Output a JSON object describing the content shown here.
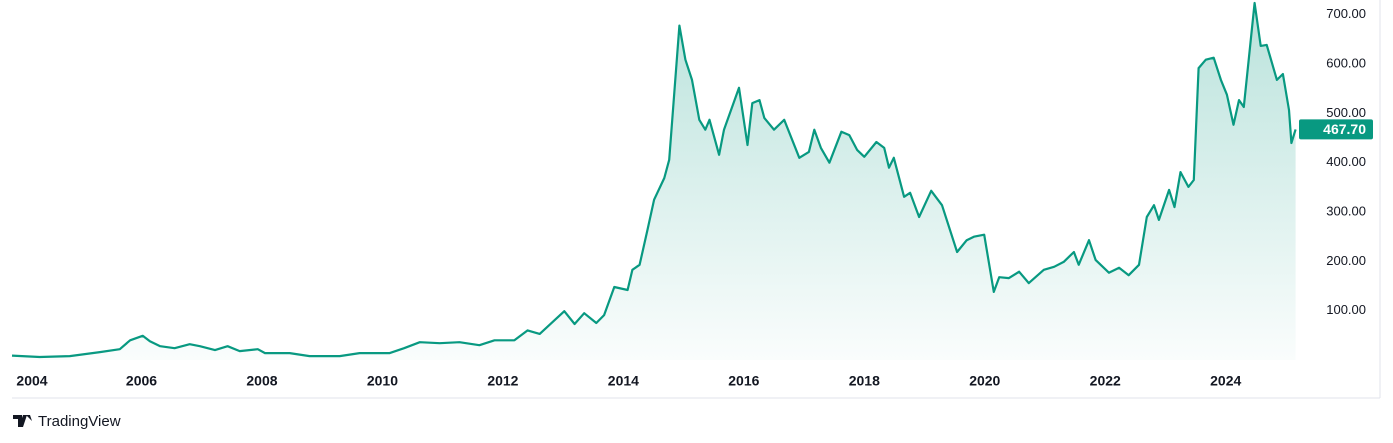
{
  "chart_data": {
    "type": "area",
    "brand": "TradingView",
    "color": "#089981",
    "x": [
      2003.85,
      2004.31,
      2004.81,
      2005.31,
      2005.64,
      2005.81,
      2006.02,
      2006.14,
      2006.31,
      2006.55,
      2006.8,
      2006.97,
      2007.22,
      2007.43,
      2007.63,
      2007.93,
      2008.05,
      2008.46,
      2008.79,
      2009.29,
      2009.62,
      2010.12,
      2010.36,
      2010.62,
      2010.95,
      2011.28,
      2011.61,
      2011.86,
      2012.19,
      2012.41,
      2012.61,
      2012.86,
      2013.02,
      2013.19,
      2013.35,
      2013.55,
      2013.68,
      2013.85,
      2014.07,
      2014.15,
      2014.27,
      2014.4,
      2014.51,
      2014.68,
      2014.76,
      2014.93,
      2015.03,
      2015.14,
      2015.26,
      2015.36,
      2015.43,
      2015.59,
      2015.67,
      2015.92,
      2016.06,
      2016.14,
      2016.26,
      2016.34,
      2016.5,
      2016.67,
      2016.92,
      2017.08,
      2017.17,
      2017.28,
      2017.42,
      2017.62,
      2017.75,
      2017.88,
      2018.0,
      2018.2,
      2018.33,
      2018.41,
      2018.49,
      2018.66,
      2018.76,
      2018.91,
      2019.11,
      2019.29,
      2019.54,
      2019.7,
      2019.82,
      2019.99,
      2020.15,
      2020.24,
      2020.4,
      2020.57,
      2020.73,
      2020.98,
      2021.15,
      2021.31,
      2021.48,
      2021.56,
      2021.73,
      2021.84,
      2022.06,
      2022.23,
      2022.39,
      2022.56,
      2022.69,
      2022.81,
      2022.89,
      2023.06,
      2023.15,
      2023.25,
      2023.38,
      2023.47,
      2023.55,
      2023.67,
      2023.8,
      2023.92,
      2024.02,
      2024.13,
      2024.22,
      2024.3,
      2024.48,
      2024.58,
      2024.68,
      2024.85,
      2024.95,
      2025.05,
      2025.09,
      2025.16
    ],
    "values": [
      9,
      6,
      8,
      16,
      22,
      40,
      49,
      38,
      28,
      24,
      32,
      28,
      20,
      28,
      18,
      22,
      14,
      14,
      8,
      8,
      14,
      14,
      24,
      36,
      34,
      36,
      30,
      40,
      40,
      60,
      53,
      81,
      99,
      73,
      95,
      75,
      91,
      148,
      142,
      183,
      193,
      264,
      325,
      369,
      406,
      678,
      609,
      568,
      487,
      467,
      487,
      416,
      467,
      552,
      436,
      521,
      527,
      491,
      467,
      487,
      410,
      422,
      467,
      430,
      400,
      463,
      456,
      426,
      412,
      442,
      430,
      390,
      410,
      331,
      339,
      290,
      343,
      314,
      219,
      243,
      250,
      254,
      138,
      168,
      166,
      179,
      156,
      183,
      189,
      199,
      219,
      193,
      243,
      203,
      177,
      187,
      172,
      193,
      290,
      314,
      284,
      345,
      310,
      381,
      351,
      365,
      592,
      609,
      613,
      568,
      538,
      477,
      527,
      513,
      724,
      637,
      639,
      568,
      580,
      507,
      440,
      467.7
    ],
    "last_price": {
      "value": 467.7,
      "label": "467.70"
    },
    "xlim": [
      2003.85,
      2025.2
    ],
    "xticks": [
      2004,
      2006,
      2008,
      2010,
      2012,
      2014,
      2016,
      2018,
      2020,
      2022,
      2024
    ],
    "ylim": [
      0,
      730
    ],
    "yticks": [
      {
        "value": 100,
        "label": "100.00"
      },
      {
        "value": 200,
        "label": "200.00"
      },
      {
        "value": 300,
        "label": "300.00"
      },
      {
        "value": 400,
        "label": "400.00"
      },
      {
        "value": 500,
        "label": "500.00"
      },
      {
        "value": 600,
        "label": "600.00"
      },
      {
        "value": 700,
        "label": "700.00"
      }
    ]
  }
}
